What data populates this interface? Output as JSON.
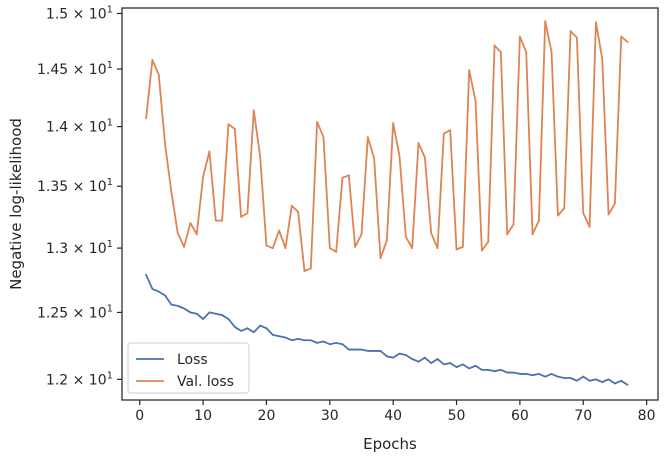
{
  "chart_data": {
    "type": "line",
    "title": "",
    "xlabel": "Epochs",
    "ylabel": "Negative log-likelihood",
    "xlim": [
      -2.8,
      81.8
    ],
    "ylim": [
      11.85,
      15.05
    ],
    "yscale": "log",
    "grid": false,
    "legend_position": "lower-left",
    "x_ticks": [
      0,
      10,
      20,
      30,
      40,
      50,
      60,
      70,
      80
    ],
    "x_tick_labels": [
      "0",
      "10",
      "20",
      "30",
      "40",
      "50",
      "60",
      "70",
      "80"
    ],
    "y_ticks": [
      12.0,
      12.5,
      13.0,
      13.5,
      14.0,
      14.5,
      15.0
    ],
    "y_tick_labels": [
      {
        "base": "1.2 × 10",
        "exp": "1"
      },
      {
        "base": "1.25 × 10",
        "exp": "1"
      },
      {
        "base": "1.3 × 10",
        "exp": "1"
      },
      {
        "base": "1.35 × 10",
        "exp": "1"
      },
      {
        "base": "1.4 × 10",
        "exp": "1"
      },
      {
        "base": "1.45 × 10",
        "exp": "1"
      },
      {
        "base": "1.5 × 10",
        "exp": "1"
      }
    ],
    "series": [
      {
        "name": "Loss",
        "color": "#4c72b0",
        "x": [
          1,
          2,
          3,
          4,
          5,
          6,
          7,
          8,
          9,
          10,
          11,
          12,
          13,
          14,
          15,
          16,
          17,
          18,
          19,
          20,
          21,
          22,
          23,
          24,
          25,
          26,
          27,
          28,
          29,
          30,
          31,
          32,
          33,
          34,
          35,
          36,
          37,
          38,
          39,
          40,
          41,
          42,
          43,
          44,
          45,
          46,
          47,
          48,
          49,
          50,
          51,
          52,
          53,
          54,
          55,
          56,
          57,
          58,
          59,
          60,
          61,
          62,
          63,
          64,
          65,
          66,
          67,
          68,
          69,
          70,
          71,
          72,
          73,
          74,
          75,
          76,
          77
        ],
        "y": [
          12.79,
          12.68,
          12.66,
          12.63,
          12.56,
          12.55,
          12.53,
          12.5,
          12.49,
          12.45,
          12.5,
          12.49,
          12.48,
          12.45,
          12.39,
          12.36,
          12.38,
          12.35,
          12.4,
          12.38,
          12.33,
          12.32,
          12.31,
          12.29,
          12.3,
          12.29,
          12.29,
          12.27,
          12.28,
          12.26,
          12.27,
          12.26,
          12.22,
          12.22,
          12.22,
          12.21,
          12.21,
          12.21,
          12.17,
          12.16,
          12.19,
          12.18,
          12.15,
          12.13,
          12.16,
          12.12,
          12.15,
          12.11,
          12.12,
          12.09,
          12.11,
          12.08,
          12.1,
          12.07,
          12.07,
          12.06,
          12.07,
          12.05,
          12.05,
          12.04,
          12.04,
          12.03,
          12.04,
          12.02,
          12.04,
          12.02,
          12.01,
          12.01,
          11.99,
          12.02,
          11.99,
          12.0,
          11.98,
          12.0,
          11.97,
          11.99,
          11.96
        ]
      },
      {
        "name": "Val. loss",
        "color": "#dd8452",
        "x": [
          1,
          2,
          3,
          4,
          5,
          6,
          7,
          8,
          9,
          10,
          11,
          12,
          13,
          14,
          15,
          16,
          17,
          18,
          19,
          20,
          21,
          22,
          23,
          24,
          25,
          26,
          27,
          28,
          29,
          30,
          31,
          32,
          33,
          34,
          35,
          36,
          37,
          38,
          39,
          40,
          41,
          42,
          43,
          44,
          45,
          46,
          47,
          48,
          49,
          50,
          51,
          52,
          53,
          54,
          55,
          56,
          57,
          58,
          59,
          60,
          61,
          62,
          63,
          64,
          65,
          66,
          67,
          68,
          69,
          70,
          71,
          72,
          73,
          74,
          75,
          76,
          77
        ],
        "y": [
          14.07,
          14.58,
          14.45,
          13.85,
          13.45,
          13.12,
          13.01,
          13.2,
          13.11,
          13.58,
          13.79,
          13.22,
          13.22,
          14.02,
          13.98,
          13.25,
          13.28,
          14.14,
          13.75,
          13.02,
          13.0,
          13.14,
          13.0,
          13.34,
          13.29,
          12.82,
          12.84,
          14.04,
          13.91,
          13.0,
          12.97,
          13.57,
          13.59,
          13.01,
          13.11,
          13.91,
          13.73,
          12.92,
          13.06,
          14.03,
          13.75,
          13.09,
          13.0,
          13.86,
          13.74,
          13.12,
          13.0,
          13.94,
          13.97,
          12.99,
          13.01,
          14.49,
          14.22,
          12.98,
          13.05,
          14.71,
          14.65,
          13.11,
          13.19,
          14.79,
          14.65,
          13.11,
          13.22,
          14.93,
          14.65,
          13.26,
          13.32,
          14.84,
          14.78,
          13.28,
          13.17,
          14.92,
          14.59,
          13.27,
          13.36,
          14.79,
          14.74
        ]
      }
    ]
  }
}
